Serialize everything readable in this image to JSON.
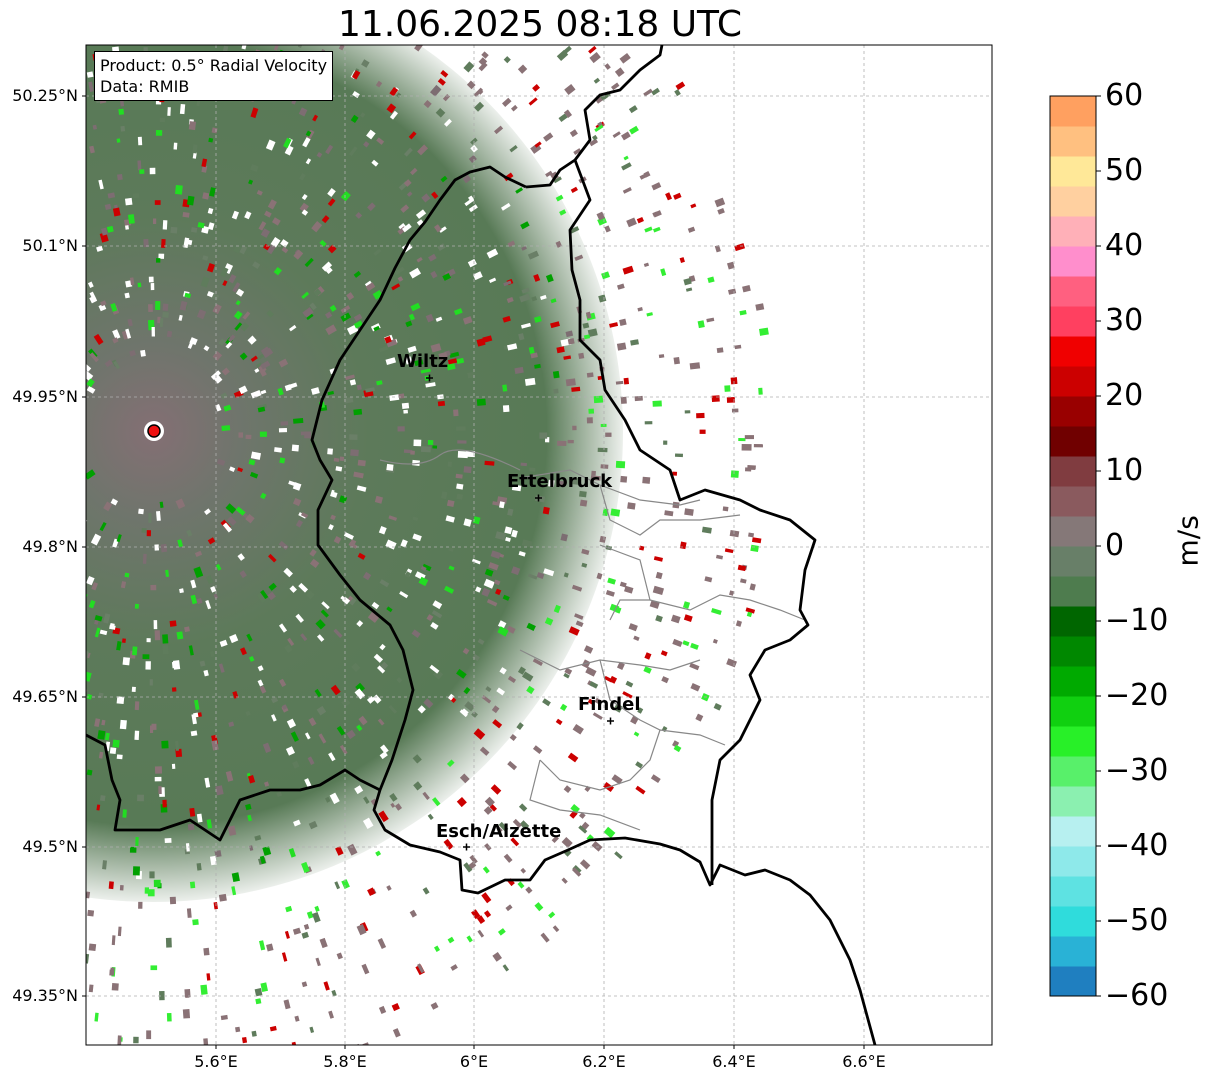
{
  "title": "11.06.2025 08:18 UTC",
  "info": {
    "product": "Product: 0.5° Radial Velocity",
    "data": "Data: RMIB"
  },
  "lat_ticks": [
    "50.25°N",
    "50.1°N",
    "49.95°N",
    "49.8°N",
    "49.65°N",
    "49.5°N",
    "49.35°N"
  ],
  "lon_ticks": [
    "5.6°E",
    "5.8°E",
    "6°E",
    "6.2°E",
    "6.4°E",
    "6.6°E"
  ],
  "cities": [
    {
      "name": "Wiltz"
    },
    {
      "name": "Ettelbruck"
    },
    {
      "name": "Findel"
    },
    {
      "name": "Esch/Alzette"
    }
  ],
  "colorbar": {
    "unit": "m/s",
    "ticks": [
      "60",
      "50",
      "40",
      "30",
      "20",
      "10",
      "0",
      "−10",
      "−20",
      "−30",
      "−40",
      "−50",
      "−60"
    ],
    "min": -60,
    "max": 60,
    "colors": [
      "#1f7fc0",
      "#29b2d6",
      "#2fdcdc",
      "#5ee2e2",
      "#8ee9ea",
      "#b7f0f0",
      "#8bf0b0",
      "#58f06a",
      "#28f028",
      "#10d010",
      "#00aa00",
      "#008800",
      "#006600",
      "#4e7c4e",
      "#687f68",
      "#857878",
      "#8a5a5e",
      "#803c40",
      "#700000",
      "#990000",
      "#cc0000",
      "#f00000",
      "#ff4060",
      "#ff6080",
      "#ff8ecc",
      "#ffb0b8",
      "#ffd0a0",
      "#ffe898",
      "#ffc080",
      "#ffa060"
    ]
  },
  "radar_site": {
    "color": "#ee1111"
  },
  "colors": {
    "base_green": "#5a7a58",
    "base_mauve": "#8a7276",
    "border": "#000000",
    "canton": "#888888"
  }
}
